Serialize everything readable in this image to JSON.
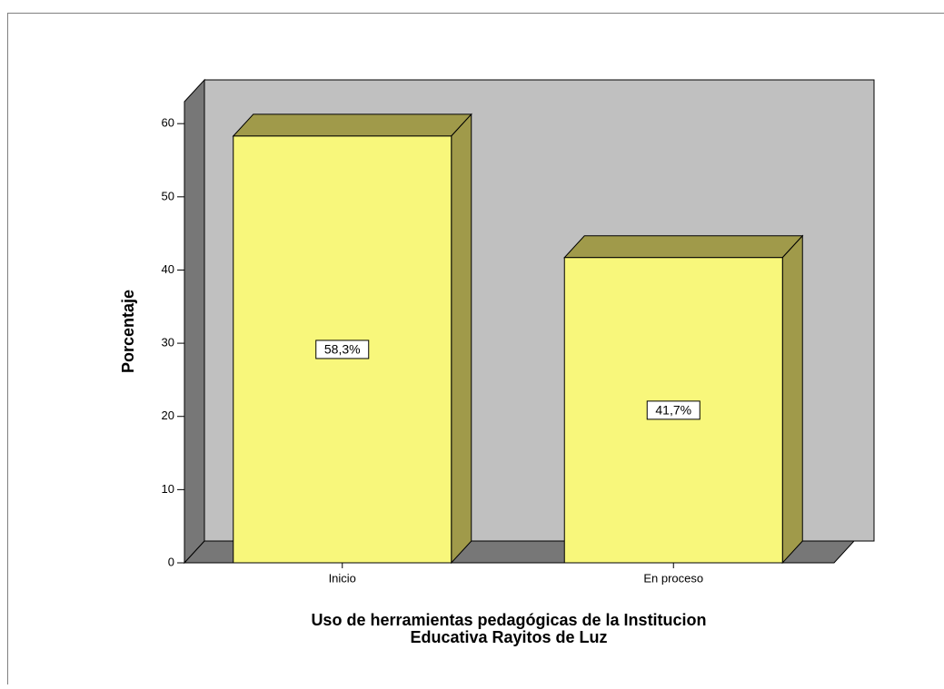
{
  "chart_data": {
    "type": "bar3d",
    "categories": [
      "Inicio",
      "En proceso"
    ],
    "values": [
      58.3,
      41.7
    ],
    "value_labels": [
      "58,3%",
      "41,7%"
    ],
    "color": "#f8f77b",
    "ylim": [
      0,
      63
    ],
    "yticks": [
      0,
      10,
      20,
      30,
      40,
      50,
      60
    ],
    "ylabel": "Porcentaje",
    "xlabel": [
      "Uso de herramientas pedagógicas de la Institucion",
      "Educativa Rayitos de Luz"
    ],
    "grid": false
  }
}
